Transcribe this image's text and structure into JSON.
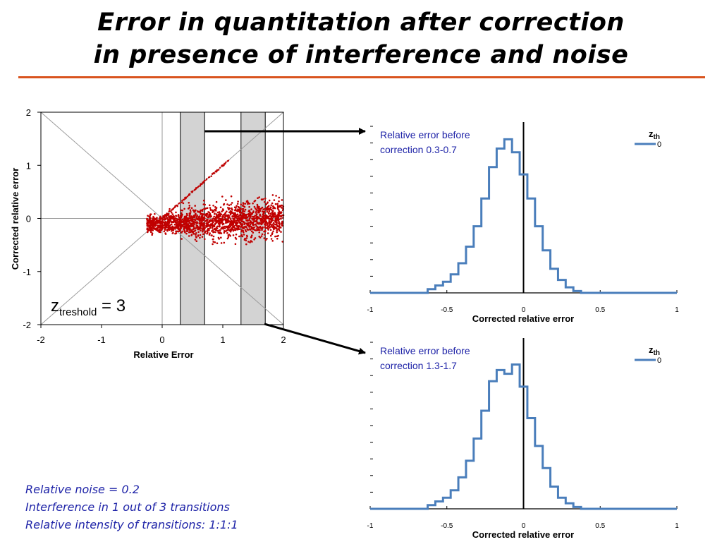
{
  "slide": {
    "title_line1": "Error in quantitation after correction",
    "title_line2": "in presence of interference and noise",
    "notes": [
      "Relative noise = 0.2",
      "Interference in 1 out of 3 transitions",
      "Relative intensity of transitions: 1:1:1"
    ]
  },
  "colors": {
    "rule": "#d9541e",
    "scatter": "#c00000",
    "series": "#4a7ebb",
    "band": "#d3d3d3",
    "note": "#1f24a8"
  },
  "chart_data": [
    {
      "type": "scatter",
      "xlabel": "Relative Error",
      "ylabel": "Corrected relative error",
      "xlim": [
        -2,
        2
      ],
      "ylim": [
        -2,
        2
      ],
      "xticks": [
        "-2",
        "-1",
        "0",
        "1",
        "2"
      ],
      "yticks": [
        "2",
        "1",
        "0",
        "-1",
        "-2"
      ],
      "annotation_main": "z",
      "annotation_sub": "treshold",
      "annotation_rest": " = 3",
      "highlight_bands": [
        [
          0.3,
          0.7
        ],
        [
          1.3,
          1.7
        ]
      ]
    },
    {
      "type": "line",
      "annotation": [
        "Relative error before",
        "correction 0.3-0.7"
      ],
      "xlabel": "Corrected relative error",
      "xlim": [
        -1,
        1
      ],
      "xticks": [
        "-1",
        "-0.5",
        "0",
        "0.5",
        "1"
      ],
      "legend_title_main": "z",
      "legend_title_sub": "th",
      "series": [
        {
          "name": "0",
          "x": [
            -0.6,
            -0.55,
            -0.5,
            -0.45,
            -0.4,
            -0.35,
            -0.3,
            -0.25,
            -0.2,
            -0.15,
            -0.1,
            -0.05,
            0,
            0.05,
            0.1,
            0.15,
            0.2,
            0.25,
            0.3,
            0.35
          ],
          "values": [
            0.02,
            0.04,
            0.06,
            0.1,
            0.16,
            0.25,
            0.36,
            0.51,
            0.68,
            0.78,
            0.83,
            0.76,
            0.64,
            0.51,
            0.36,
            0.23,
            0.13,
            0.07,
            0.03,
            0.01
          ]
        }
      ]
    },
    {
      "type": "line",
      "annotation": [
        "Relative error before",
        "correction 1.3-1.7"
      ],
      "xlabel": "Corrected relative error",
      "xlim": [
        -1,
        1
      ],
      "xticks": [
        "-1",
        "-0.5",
        "0",
        "0.5",
        "1"
      ],
      "legend_title_main": "z",
      "legend_title_sub": "th",
      "series": [
        {
          "name": "0",
          "x": [
            -0.6,
            -0.55,
            -0.5,
            -0.45,
            -0.4,
            -0.35,
            -0.3,
            -0.25,
            -0.2,
            -0.15,
            -0.1,
            -0.05,
            0,
            0.05,
            0.1,
            0.15,
            0.2,
            0.25,
            0.3,
            0.35
          ],
          "values": [
            0.02,
            0.04,
            0.06,
            0.1,
            0.17,
            0.26,
            0.38,
            0.53,
            0.69,
            0.75,
            0.73,
            0.78,
            0.66,
            0.49,
            0.34,
            0.22,
            0.12,
            0.06,
            0.03,
            0.01
          ]
        }
      ]
    }
  ]
}
